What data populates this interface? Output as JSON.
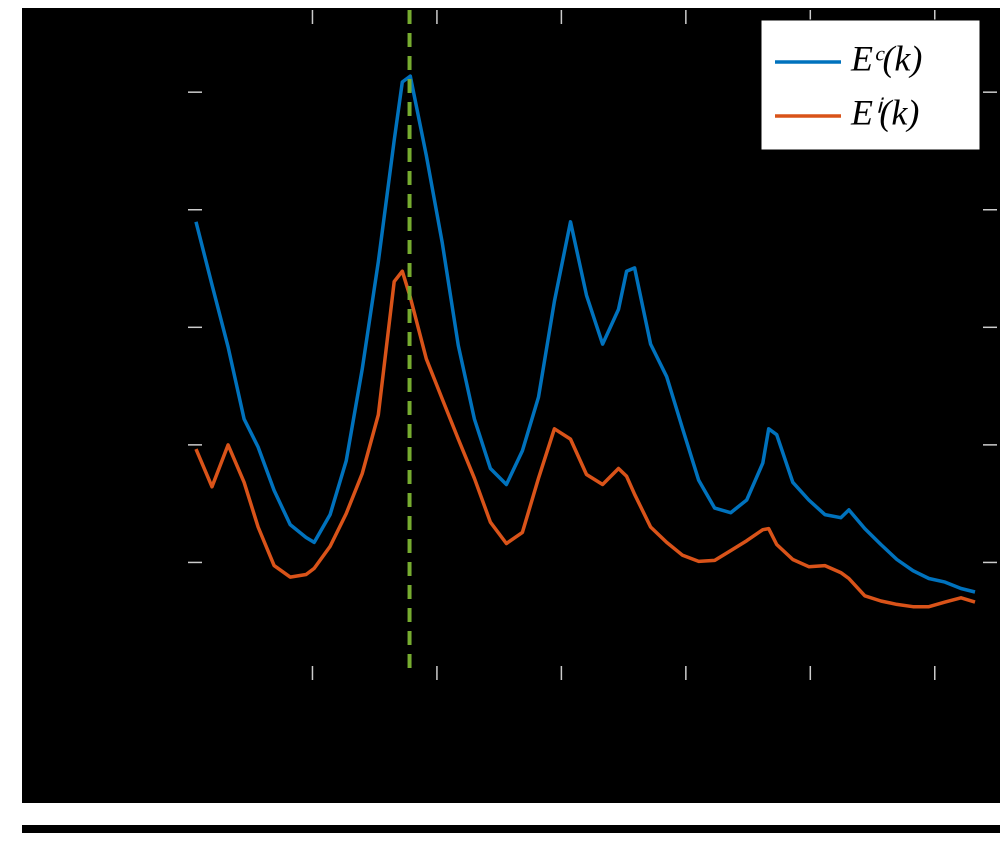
{
  "chart_data": {
    "type": "line",
    "log_y": true,
    "xlim": [
      0,
      6.5
    ],
    "xticks": [
      1,
      2,
      3,
      4,
      5,
      6
    ],
    "ylim": [
      1e-06,
      0.5
    ],
    "yticks": [
      1e-05,
      0.0001,
      0.001,
      0.01,
      0.1
    ],
    "x": [
      0.064,
      0.193,
      0.322,
      0.451,
      0.563,
      0.692,
      0.821,
      0.949,
      1.014,
      1.142,
      1.271,
      1.4,
      1.529,
      1.657,
      1.722,
      1.786,
      1.915,
      2.043,
      2.172,
      2.301,
      2.43,
      2.558,
      2.687,
      2.816,
      2.944,
      3.073,
      3.202,
      3.331,
      3.459,
      3.524,
      3.588,
      3.717,
      3.846,
      3.974,
      4.103,
      4.232,
      4.36,
      4.489,
      4.618,
      4.666,
      4.73,
      4.859,
      4.988,
      5.117,
      5.245,
      5.31,
      5.438,
      5.567,
      5.696,
      5.825,
      5.953,
      6.082,
      6.211,
      6.323
    ],
    "series": [
      {
        "name": "Eᶜ(k)",
        "color": "#0072bd",
        "values": [
          0.0079,
          0.0023,
          0.00068,
          0.000166,
          9.6e-05,
          4.1e-05,
          2.1e-05,
          1.63e-05,
          1.48e-05,
          2.55e-05,
          7.3e-05,
          0.00044,
          0.0036,
          0.039,
          0.122,
          0.137,
          0.029,
          0.0052,
          0.0007,
          0.000166,
          6.3e-05,
          4.6e-05,
          8.9e-05,
          0.000255,
          0.00166,
          0.0079,
          0.00187,
          0.00072,
          0.00142,
          0.003,
          0.0032,
          0.00072,
          0.00038,
          0.000137,
          5e-05,
          2.9e-05,
          2.65e-05,
          3.4e-05,
          7e-05,
          0.000137,
          0.000122,
          4.8e-05,
          3.4e-05,
          2.55e-05,
          2.4e-05,
          2.8e-05,
          1.94e-05,
          1.42e-05,
          1.06e-05,
          8.5e-06,
          7.3e-06,
          6.8e-06,
          6e-06,
          5.6e-06
        ]
      },
      {
        "name": "Eⁱ(k)",
        "color": "#d95319",
        "values": [
          9.2e-05,
          4.4e-05,
          0.0001,
          4.8e-05,
          2e-05,
          9.4e-06,
          7.5e-06,
          7.9e-06,
          8.9e-06,
          1.37e-05,
          2.6e-05,
          5.7e-05,
          0.00018,
          0.00245,
          0.003,
          0.0018,
          0.00054,
          0.000245,
          0.000112,
          5.2e-05,
          2.2e-05,
          1.45e-05,
          1.8e-05,
          5.2e-05,
          0.000137,
          0.000112,
          5.6e-05,
          4.6e-05,
          6.3e-05,
          5.4e-05,
          3.8e-05,
          2e-05,
          1.48e-05,
          1.15e-05,
          1.02e-05,
          1.04e-05,
          1.26e-05,
          1.53e-05,
          1.9e-05,
          1.94e-05,
          1.42e-05,
          1.06e-05,
          9.2e-06,
          9.4e-06,
          8.2e-06,
          7.3e-06,
          5.2e-06,
          4.7e-06,
          4.4e-06,
          4.2e-06,
          4.2e-06,
          4.6e-06,
          5e-06,
          4.6e-06
        ]
      }
    ],
    "vline": {
      "x": 1.78,
      "color": "#77ac30"
    },
    "legend": "upper right"
  }
}
